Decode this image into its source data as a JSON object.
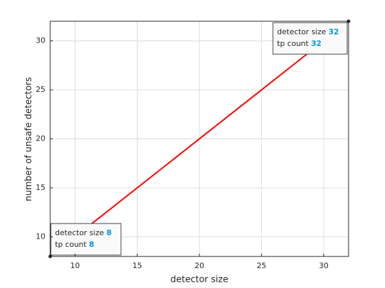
{
  "chart_data": {
    "type": "line",
    "x_label": "detector size",
    "y_label": "number of unsafe detectors",
    "x": [
      8,
      32
    ],
    "series": [
      {
        "name": "tp count",
        "color": "#ff0000",
        "values": [
          8,
          32
        ]
      }
    ],
    "xlim": [
      8,
      32
    ],
    "ylim": [
      8,
      32
    ],
    "xticks": [
      10,
      15,
      20,
      25,
      30
    ],
    "yticks": [
      10,
      15,
      20,
      25,
      30
    ],
    "grid": true,
    "datatip_labels": [
      "detector size",
      "tp count"
    ]
  }
}
